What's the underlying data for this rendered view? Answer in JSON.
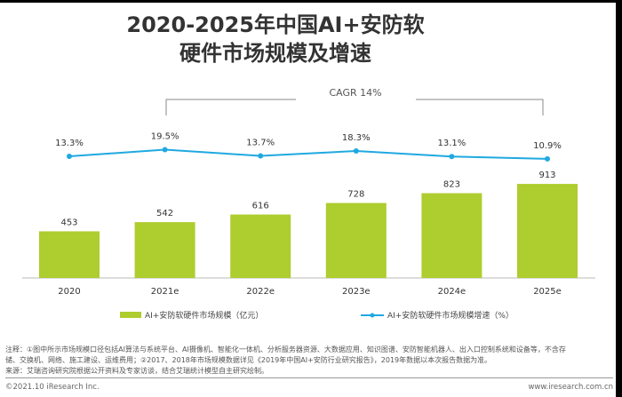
{
  "title_line1": "2020-2025年中国AI+安防软",
  "title_line2": "硬件市场规模及增速",
  "cagr": "CAGR 14%",
  "chart_data": {
    "type": "bar+line",
    "categories": [
      "2020",
      "2021e",
      "2022e",
      "2023e",
      "2024e",
      "2025e"
    ],
    "series": [
      {
        "name": "AI+安防软硬件市场规模（亿元）",
        "type": "bar",
        "color": "#aecd2e",
        "values": [
          453,
          542,
          616,
          728,
          823,
          913
        ]
      },
      {
        "name": "AI+安防软硬件市场规模增速（%）",
        "type": "line",
        "color": "#1fa9e0",
        "values": [
          13.3,
          19.5,
          13.7,
          18.3,
          13.1,
          10.9
        ]
      }
    ]
  },
  "notes": [
    "注释：①图中所示市场规模口径包括AI算法与系统平台、AI摄像机、智能化一体机、分析服务器资源、大数据应用、知识图谱、安防智能机器人、出入口控制系统和设备等，不含存",
    "储、交换机、网络、施工建设、运维费用；②2017、2018年市场规模数据详见《2019年中国AI+安防行业研究报告》，2019年数据以本次报告数据为准。",
    "来源：艾瑞咨询研究院根据公开资料及专家访谈，结合艾瑞统计模型自主研究绘制。"
  ],
  "copyright": "©2021.10 iResearch Inc.",
  "website": "www.iresearch.com.cn"
}
